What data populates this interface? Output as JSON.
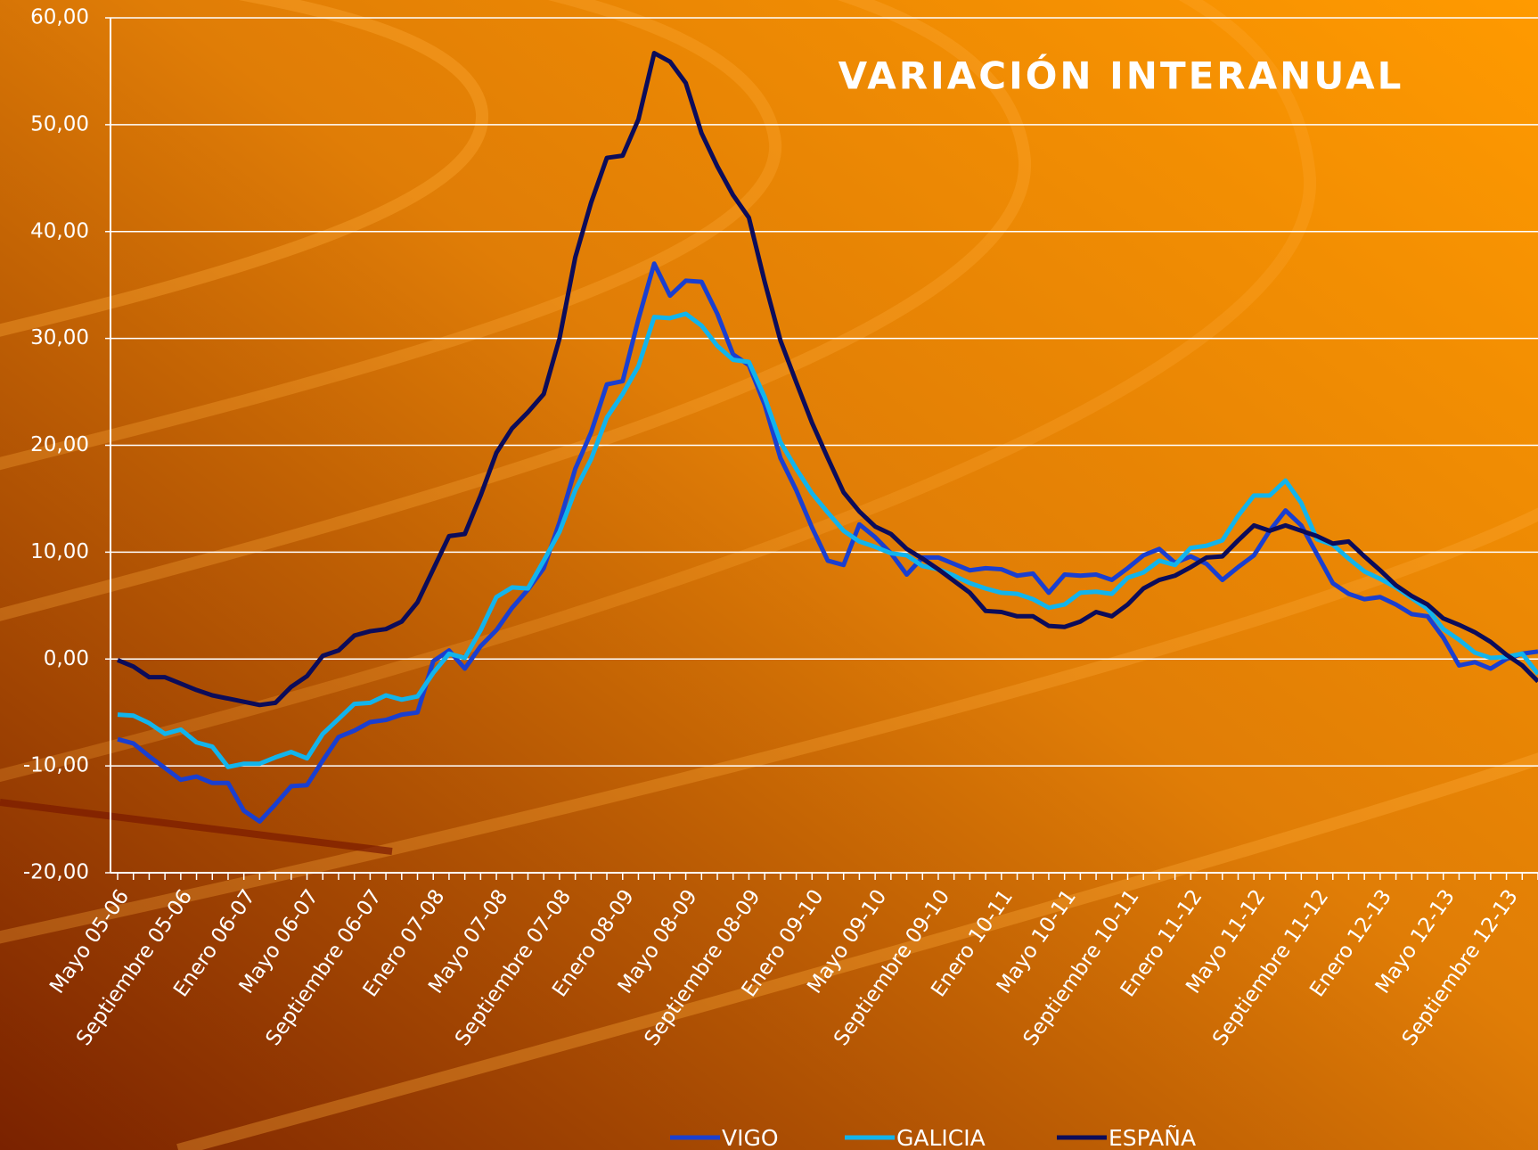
{
  "chart_data": {
    "type": "line",
    "title": "VARIACIÓN INTERANUAL",
    "categories": [
      "Mayo 05-06",
      null,
      null,
      null,
      "Septiembre 05-06",
      null,
      null,
      null,
      "Enero 06-07",
      null,
      null,
      null,
      "Mayo 06-07",
      null,
      null,
      null,
      "Septiembre 06-07",
      null,
      null,
      null,
      "Enero 07-08",
      null,
      null,
      null,
      "Mayo 07-08",
      null,
      null,
      null,
      "Septiembre 07-08",
      null,
      null,
      null,
      "Enero 08-09",
      null,
      null,
      null,
      "Mayo 08-09",
      null,
      null,
      null,
      "Septiembre 08-09",
      null,
      null,
      null,
      "Enero 09-10",
      null,
      null,
      null,
      "Mayo 09-10",
      null,
      null,
      null,
      "Septiembre 09-10",
      null,
      null,
      null,
      "Enero 10-11",
      null,
      null,
      null,
      "Mayo 10-11",
      null,
      null,
      null,
      "Septiembre 10-11",
      null,
      null,
      null,
      "Enero 11-12",
      null,
      null,
      null,
      "Mayo 11-12",
      null,
      null,
      null,
      "Septiembre 11-12",
      null,
      null,
      null,
      "Enero 12-13",
      null,
      null,
      null,
      "Mayo 12-13",
      null,
      null,
      null,
      "Septiembre 12-13",
      null,
      null
    ],
    "series": [
      {
        "name": "VIGO",
        "color": "#1a3fd0",
        "values": [
          -7.5,
          -7.9,
          -9.1,
          -10.2,
          -11.3,
          -11.0,
          -11.6,
          -11.6,
          -14.2,
          -15.2,
          -13.6,
          -11.9,
          -11.8,
          -9.5,
          -7.3,
          -6.7,
          -5.9,
          -5.7,
          -5.2,
          -5.0,
          -0.2,
          0.8,
          -0.9,
          1.2,
          2.7,
          4.8,
          6.5,
          8.5,
          12.8,
          17.8,
          21.2,
          25.7,
          26.0,
          31.8,
          37.0,
          34.0,
          35.4,
          35.3,
          32.3,
          28.5,
          27.5,
          23.8,
          18.8,
          15.8,
          12.3,
          9.2,
          8.8,
          12.6,
          11.4,
          9.9,
          7.9,
          9.5,
          9.5,
          8.9,
          8.3,
          8.5,
          8.4,
          7.8,
          8.0,
          6.2,
          7.9,
          7.8,
          7.9,
          7.4,
          8.5,
          9.7,
          10.3,
          9.0,
          9.6,
          8.9,
          7.4,
          8.6,
          9.7,
          12.0,
          13.9,
          12.5,
          9.8,
          7.1,
          6.1,
          5.6,
          5.8,
          5.1,
          4.2,
          4.0,
          2.0,
          -0.6,
          -0.3,
          -0.9,
          0.0,
          0.5,
          0.7
        ]
      },
      {
        "name": "GALICIA",
        "color": "#12b4ec",
        "values": [
          -5.2,
          -5.3,
          -6.0,
          -7.0,
          -6.6,
          -7.8,
          -8.2,
          -10.1,
          -9.8,
          -9.8,
          -9.2,
          -8.7,
          -9.3,
          -7.0,
          -5.6,
          -4.2,
          -4.1,
          -3.4,
          -3.8,
          -3.5,
          -1.3,
          0.5,
          0.1,
          2.7,
          5.8,
          6.7,
          6.6,
          9.2,
          11.9,
          15.8,
          18.7,
          22.6,
          24.8,
          27.4,
          32.0,
          31.9,
          32.3,
          31.2,
          29.3,
          28.0,
          27.8,
          24.5,
          20.3,
          17.8,
          15.5,
          13.7,
          12.0,
          11.0,
          10.5,
          9.9,
          9.7,
          8.7,
          8.4,
          7.8,
          7.1,
          6.6,
          6.2,
          6.1,
          5.6,
          4.8,
          5.1,
          6.2,
          6.3,
          6.1,
          7.6,
          8.1,
          9.2,
          8.8,
          10.4,
          10.6,
          11.1,
          13.4,
          15.3,
          15.3,
          16.7,
          14.6,
          11.2,
          10.7,
          9.4,
          8.2,
          7.5,
          6.7,
          5.7,
          4.7,
          2.8,
          1.8,
          0.6,
          0.1,
          0.2,
          0.5,
          -1.4
        ]
      },
      {
        "name": "ESPAÑA",
        "color": "#0c0c5a",
        "values": [
          -0.1,
          -0.7,
          -1.7,
          -1.7,
          -2.3,
          -2.9,
          -3.4,
          -3.7,
          -4.0,
          -4.3,
          -4.1,
          -2.6,
          -1.6,
          0.3,
          0.8,
          2.2,
          2.6,
          2.8,
          3.5,
          5.3,
          8.4,
          11.5,
          11.7,
          15.3,
          19.3,
          21.6,
          23.1,
          24.8,
          30.0,
          37.6,
          42.7,
          46.9,
          47.1,
          50.5,
          56.7,
          55.9,
          53.9,
          49.2,
          46.1,
          43.4,
          41.3,
          35.3,
          29.8,
          25.9,
          22.1,
          18.8,
          15.6,
          13.8,
          12.4,
          11.7,
          10.3,
          9.4,
          8.4,
          7.3,
          6.2,
          4.5,
          4.4,
          4.0,
          4.0,
          3.1,
          3.0,
          3.5,
          4.4,
          4.0,
          5.1,
          6.6,
          7.4,
          7.8,
          8.6,
          9.5,
          9.6,
          11.1,
          12.5,
          12.0,
          12.5,
          12.0,
          11.5,
          10.8,
          11.0,
          9.6,
          8.3,
          6.9,
          5.9,
          5.1,
          3.8,
          3.2,
          2.5,
          1.6,
          0.4,
          -0.6,
          -2.1
        ]
      }
    ],
    "ylim": [
      -20,
      60
    ],
    "yticks": [
      {
        "value": -20,
        "label": "-20,00"
      },
      {
        "value": -10,
        "label": "-10,00"
      },
      {
        "value": 0,
        "label": "0,00"
      },
      {
        "value": 10,
        "label": "10,00"
      },
      {
        "value": 20,
        "label": "20,00"
      },
      {
        "value": 30,
        "label": "30,00"
      },
      {
        "value": 40,
        "label": "40,00"
      },
      {
        "value": 50,
        "label": "50,00"
      },
      {
        "value": 60,
        "label": "60,00"
      }
    ],
    "grid": true,
    "legend": "bottom"
  }
}
